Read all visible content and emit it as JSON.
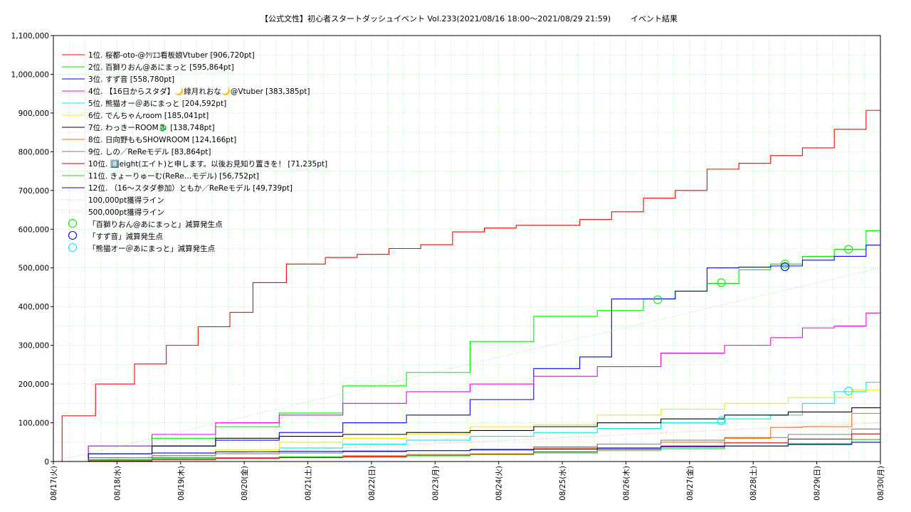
{
  "chart_data": {
    "type": "line",
    "title": "【公式文性】初心者スタートダッシュイベント Vol.233(2021/08/16 18:00～2021/08/29 21:59)",
    "subtitle": "イベント結果",
    "xlabel": "",
    "ylabel": "",
    "ylim": [
      0,
      1100000
    ],
    "y_ticks": [
      "0",
      "100,000",
      "200,000",
      "300,000",
      "400,000",
      "500,000",
      "600,000",
      "700,000",
      "800,000",
      "900,000",
      "1,000,000",
      "1,100,000"
    ],
    "x_range": [
      "08/17",
      "08/30"
    ],
    "x_ticks": [
      "08/17(火)",
      "08/18(水)",
      "08/19(木)",
      "08/20(金)",
      "08/21(土)",
      "08/22(日)",
      "08/23(月)",
      "08/24(火)",
      "08/25(水)",
      "08/26(木)",
      "08/27(金)",
      "08/28(土)",
      "08/29(日)",
      "08/30(月)"
    ],
    "grid": true,
    "legend_position": "top-left",
    "series": [
      {
        "name": "1位. 桜都-oto-@ｸﾘｴｺ看板娘Vtuber [906,720pt]",
        "color": "#ff0000",
        "x": [
          "08/17",
          "08/17 06:00",
          "08/18",
          "08/18 12:00",
          "08/19",
          "08/19 12:00",
          "08/20",
          "08/20 06:00",
          "08/21",
          "08/21 12:00",
          "08/22",
          "08/22 12:00",
          "08/23",
          "08/23 12:00",
          "08/24",
          "08/24 12:00",
          "08/25",
          "08/25 12:00",
          "08/26",
          "08/26 12:00",
          "08/27",
          "08/27 12:00",
          "08/28",
          "08/28 12:00",
          "08/29",
          "08/29 12:00",
          "08/30"
        ],
        "values": [
          0,
          118000,
          200000,
          252000,
          300000,
          348000,
          385000,
          462000,
          510000,
          527000,
          535000,
          550000,
          560000,
          593000,
          603000,
          610000,
          610000,
          625000,
          645000,
          680000,
          700000,
          755000,
          770000,
          790000,
          810000,
          858000,
          906720
        ]
      },
      {
        "name": "2位. 百獅りおん@あにまっと [595,864pt]",
        "color": "#00ee00",
        "x": [
          "08/17",
          "08/18",
          "08/19",
          "08/20",
          "08/21",
          "08/22",
          "08/23",
          "08/24",
          "08/25",
          "08/26",
          "08/26 12:00",
          "08/27",
          "08/27 12:00",
          "08/28",
          "08/28 12:00",
          "08/29",
          "08/29 12:00",
          "08/30"
        ],
        "values": [
          0,
          40000,
          60000,
          90000,
          125000,
          195000,
          230000,
          310000,
          375000,
          390000,
          420000,
          440000,
          460000,
          495000,
          510000,
          530000,
          548000,
          595864
        ]
      },
      {
        "name": "3位. すず音 [558,780pt]",
        "color": "#0000ff",
        "x": [
          "08/17",
          "08/18",
          "08/19",
          "08/20",
          "08/21",
          "08/22",
          "08/23",
          "08/24",
          "08/25",
          "08/25 12:00",
          "08/26",
          "08/26 12:00",
          "08/27",
          "08/27 12:00",
          "08/28",
          "08/28 12:00",
          "08/29",
          "08/29 12:00",
          "08/30"
        ],
        "values": [
          0,
          20000,
          40000,
          55000,
          75000,
          100000,
          120000,
          160000,
          240000,
          270000,
          420000,
          420000,
          440000,
          500000,
          502000,
          505000,
          520000,
          530000,
          558780
        ]
      },
      {
        "name": "4位. 【16日からスタダ】🌙緋月れおな🌙@Vtuber [383,385pt]",
        "color": "#ee00ee",
        "x": [
          "08/17",
          "08/18",
          "08/19",
          "08/20",
          "08/21",
          "08/22",
          "08/23",
          "08/24",
          "08/25",
          "08/26",
          "08/27",
          "08/28",
          "08/28 12:00",
          "08/29",
          "08/29 12:00",
          "08/30"
        ],
        "values": [
          0,
          40000,
          70000,
          100000,
          120000,
          150000,
          180000,
          200000,
          220000,
          245000,
          280000,
          300000,
          320000,
          345000,
          350000,
          383385
        ]
      },
      {
        "name": "5位. 熊猫オー＠あにまっと [204,592pt]",
        "color": "#00eeee",
        "x": [
          "08/17",
          "08/18",
          "08/19",
          "08/20",
          "08/21",
          "08/22",
          "08/23",
          "08/24",
          "08/25",
          "08/26",
          "08/27",
          "08/28",
          "08/28 12:00",
          "08/29",
          "08/29 12:00",
          "08/30"
        ],
        "values": [
          0,
          10000,
          15000,
          25000,
          35000,
          45000,
          55000,
          65000,
          75000,
          85000,
          100000,
          110000,
          120000,
          150000,
          180000,
          204592
        ]
      },
      {
        "name": "6位. でんちゃんroom [185,041pt]",
        "color": "#eeee00",
        "x": [
          "08/17",
          "08/18",
          "08/19",
          "08/20",
          "08/21",
          "08/22",
          "08/23",
          "08/24",
          "08/25",
          "08/26",
          "08/27",
          "08/28",
          "08/29",
          "08/30"
        ],
        "values": [
          0,
          5000,
          10000,
          30000,
          50000,
          60000,
          70000,
          90000,
          95000,
          120000,
          135000,
          150000,
          165000,
          185041
        ]
      },
      {
        "name": "7位. わっきーROOM🐉 [138,748pt]",
        "color": "#000000",
        "x": [
          "08/17",
          "08/18",
          "08/19",
          "08/20",
          "08/21",
          "08/22",
          "08/23",
          "08/24",
          "08/25",
          "08/26",
          "08/27",
          "08/28",
          "08/29",
          "08/30"
        ],
        "values": [
          0,
          20000,
          40000,
          60000,
          65000,
          70000,
          75000,
          80000,
          90000,
          100000,
          110000,
          120000,
          128000,
          138748
        ]
      },
      {
        "name": "8位. 日向野ももSHOWROOM [124,166pt]",
        "color": "#ff6600",
        "x": [
          "08/17",
          "08/18",
          "08/19",
          "08/20",
          "08/21",
          "08/22",
          "08/23",
          "08/24",
          "08/25",
          "08/26",
          "08/27",
          "08/28",
          "08/28 12:00",
          "08/29",
          "08/30"
        ],
        "values": [
          0,
          5000,
          10000,
          10000,
          12000,
          15000,
          18000,
          20000,
          35000,
          45000,
          50000,
          60000,
          88000,
          90000,
          124166
        ]
      },
      {
        "name": "9位. しの／ReReモデル [83,864pt]",
        "color": "#808080",
        "x": [
          "08/17",
          "08/18",
          "08/19",
          "08/20",
          "08/21",
          "08/22",
          "08/23",
          "08/24",
          "08/25",
          "08/26",
          "08/27",
          "08/28",
          "08/29",
          "08/30"
        ],
        "values": [
          0,
          10000,
          15000,
          20000,
          22000,
          25000,
          28000,
          32000,
          38000,
          45000,
          55000,
          62000,
          70000,
          83864
        ]
      },
      {
        "name": "10位. 8️⃣eight(エイト)と申します。以後お見知り置きを！ [71,235pt]",
        "color": "#cc0000",
        "x": [
          "08/17",
          "08/18",
          "08/19",
          "08/20",
          "08/21",
          "08/22",
          "08/23",
          "08/24",
          "08/25",
          "08/26",
          "08/27",
          "08/28",
          "08/29",
          "08/30"
        ],
        "values": [
          0,
          2000,
          5000,
          8000,
          10000,
          12000,
          15000,
          18000,
          25000,
          32000,
          40000,
          48000,
          58000,
          71235
        ]
      },
      {
        "name": "11位. きょーりゅーむ(ReRe…モデル) [56,752pt]",
        "color": "#22cc22",
        "x": [
          "08/17",
          "08/18",
          "08/19",
          "08/20",
          "08/21",
          "08/22",
          "08/23",
          "08/24",
          "08/25",
          "08/26",
          "08/27",
          "08/28",
          "08/29",
          "08/30"
        ],
        "values": [
          0,
          5000,
          8000,
          10000,
          12000,
          14000,
          16000,
          18000,
          22000,
          28000,
          33000,
          40000,
          46000,
          56752
        ]
      },
      {
        "name": "12位. （16～スタダ参加）ともか／ReReモデル [49,739pt]",
        "color": "#0000cc",
        "x": [
          "08/17",
          "08/18",
          "08/19",
          "08/20",
          "08/21",
          "08/22",
          "08/23",
          "08/24",
          "08/25",
          "08/26",
          "08/27",
          "08/28",
          "08/29",
          "08/30"
        ],
        "values": [
          0,
          20000,
          22000,
          25000,
          26000,
          27000,
          28000,
          30000,
          32000,
          35000,
          38000,
          40000,
          44000,
          49739
        ]
      },
      {
        "name": "100,000pt獲得ライン",
        "color": "#ff8888",
        "style": "dotted",
        "x": [
          "08/17",
          "08/30"
        ],
        "values": [
          0,
          100000
        ]
      },
      {
        "name": "500,000pt獲得ライン",
        "color": "#88dd88",
        "style": "dotted",
        "x": [
          "08/17",
          "08/30"
        ],
        "values": [
          0,
          500000
        ]
      }
    ],
    "markers": [
      {
        "name": "「百獅りおん@あにまっと」減算発生点",
        "color": "#00ee00",
        "points": [
          {
            "x": "08/26 12:00",
            "y": 418000
          },
          {
            "x": "08/27 12:00",
            "y": 462000
          },
          {
            "x": "08/28 12:00",
            "y": 510000
          },
          {
            "x": "08/29 12:00",
            "y": 548000
          }
        ]
      },
      {
        "name": "「すず音」減算発生点",
        "color": "#0000ff",
        "points": [
          {
            "x": "08/28 12:00",
            "y": 503000
          }
        ]
      },
      {
        "name": "「熊猫オー＠あにまっと」減算発生点",
        "color": "#00eeee",
        "points": [
          {
            "x": "08/27 12:00",
            "y": 105000
          },
          {
            "x": "08/29 12:00",
            "y": 182000
          }
        ]
      }
    ]
  }
}
